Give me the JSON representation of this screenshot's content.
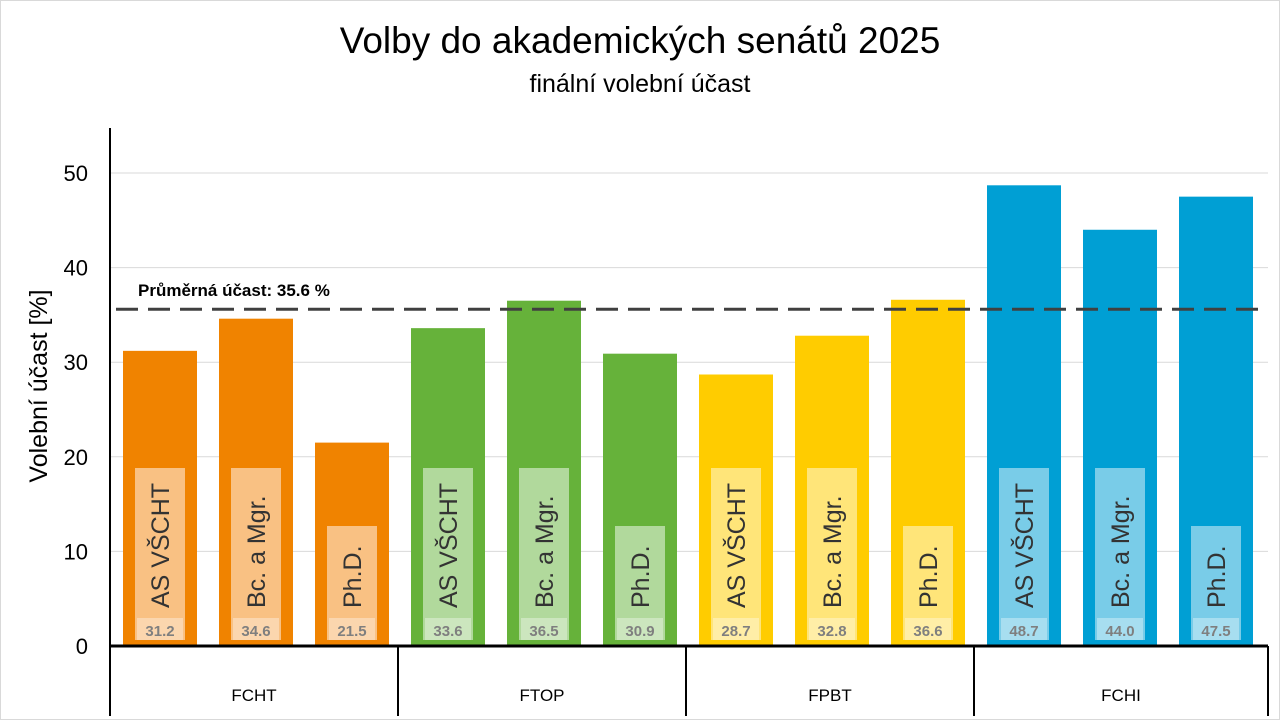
{
  "chart_data": {
    "type": "bar",
    "title": "Volby do akademických senátů 2025",
    "subtitle": "finální volební účast",
    "ylabel": "Volební účast [%]",
    "xlabel": "",
    "ylim": [
      0,
      55
    ],
    "yticks": [
      0,
      10,
      20,
      30,
      40,
      50
    ],
    "grid": true,
    "groups": [
      {
        "name": "FCHT",
        "color": "#f08300",
        "light": "#f9c48a",
        "bars": [
          {
            "label": "AS VŠCHT",
            "value": 31.2
          },
          {
            "label": "Bc. a Mgr.",
            "value": 34.6
          },
          {
            "label": "Ph.D.",
            "value": 21.5
          }
        ]
      },
      {
        "name": "FTOP",
        "color": "#66b23a",
        "light": "#b5dba1",
        "bars": [
          {
            "label": "AS VŠCHT",
            "value": 33.6
          },
          {
            "label": "Bc. a Mgr.",
            "value": 36.5
          },
          {
            "label": "Ph.D.",
            "value": 30.9
          }
        ]
      },
      {
        "name": "FPBT",
        "color": "#ffcc00",
        "light": "#ffe680",
        "bars": [
          {
            "label": "AS VŠCHT",
            "value": 28.7
          },
          {
            "label": "Bc. a Mgr.",
            "value": 32.8
          },
          {
            "label": "Ph.D.",
            "value": 36.6
          }
        ]
      },
      {
        "name": "FCHI",
        "color": "#009fd4",
        "light": "#80cfe9",
        "bars": [
          {
            "label": "AS VŠCHT",
            "value": 48.7
          },
          {
            "label": "Bc. a Mgr.",
            "value": 44.0
          },
          {
            "label": "Ph.D.",
            "value": 47.5
          }
        ]
      }
    ],
    "average": {
      "value": 35.6,
      "label": "Průměrná účast: 35.6 %"
    }
  }
}
